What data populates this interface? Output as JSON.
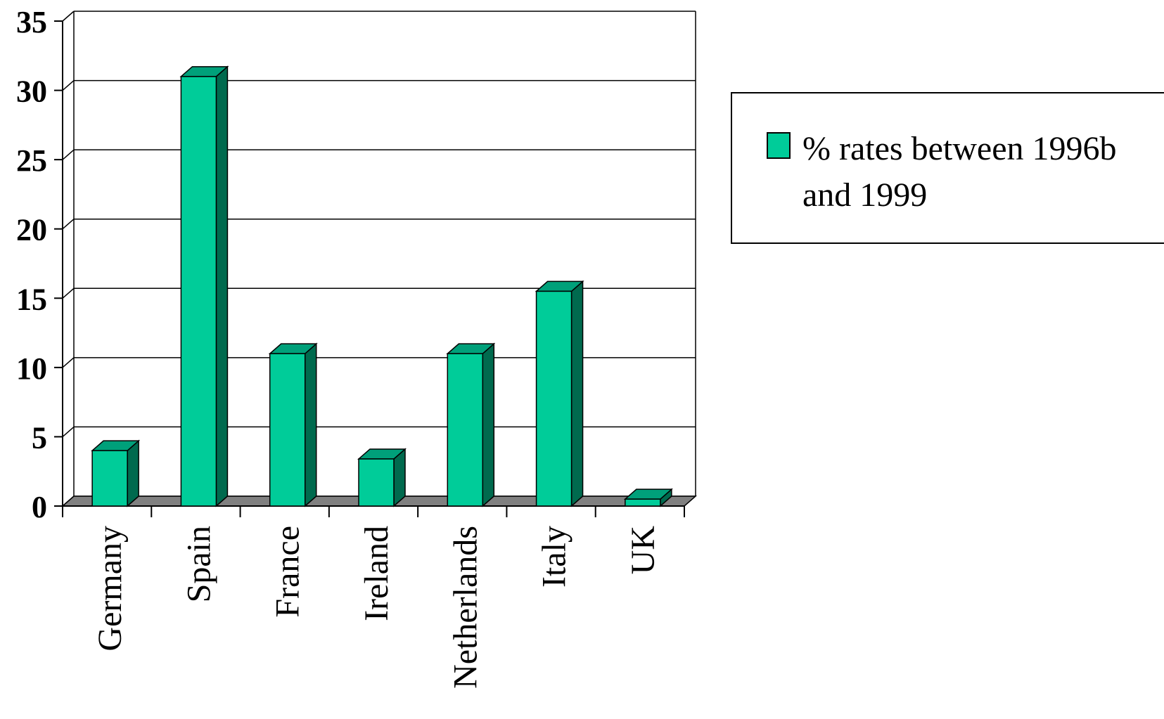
{
  "chart_data": {
    "type": "bar",
    "categories": [
      "Germany",
      "Spain",
      "France",
      "Ireland",
      "Netherlands",
      "Italy",
      "UK"
    ],
    "series": [
      {
        "name": "% rates between 1996b and 1999",
        "values": [
          4,
          31,
          11,
          3.4,
          11,
          15.5,
          0.5
        ]
      }
    ],
    "ylim": [
      0,
      35
    ],
    "yticks": [
      0,
      5,
      10,
      15,
      20,
      25,
      30,
      35
    ],
    "ytick_labels": [
      "0",
      "5",
      "10",
      "15",
      "20",
      "25",
      "30",
      "35"
    ],
    "title": "",
    "xlabel": "",
    "ylabel": "",
    "grid": true,
    "three_d": true,
    "legend_position": "right",
    "legend_lines": [
      "% rates between 1996b",
      "and 1999"
    ],
    "colors": {
      "bar_front": "#00cc99",
      "bar_side": "#006a4e",
      "bar_top": "#00a07a",
      "floor": "#808080",
      "grid": "#000000"
    }
  }
}
